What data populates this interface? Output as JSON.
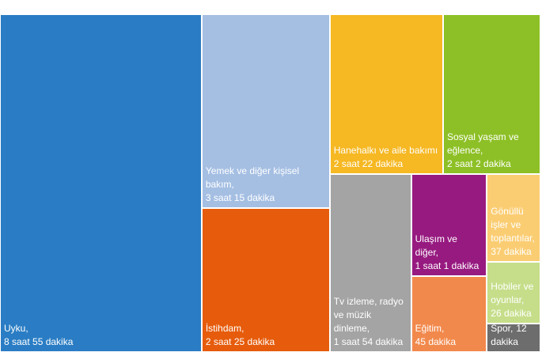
{
  "chart_data": {
    "type": "treemap",
    "categories": [
      "Uyku,",
      "Yemek ve diğer kişisel bakım,",
      "İstihdam,",
      "Hanehalkı ve aile bakımı",
      "Sosyal yaşam ve eğlence,",
      "Tv izleme, radyo ve müzik dinleme,",
      "Ulaşım ve diğer,",
      "Eğitim,",
      "Gönüllü işler ve toplantılar,",
      "Hobiler ve oyunlar,",
      "Spor,"
    ],
    "values": [
      535,
      195,
      145,
      142,
      122,
      114,
      61,
      45,
      37,
      26,
      12
    ],
    "value_labels": [
      "8 saat 55 dakika",
      "3 saat 15 dakika",
      "2 saat 25 dakika",
      "2 saat 22 dakika",
      "2 saat 2 dakika",
      "1 saat 54 dakika",
      "1 saat 1 dakika",
      "45 dakika",
      "37 dakika",
      "26 dakika",
      "12 dakika"
    ],
    "colors": [
      "#2a7dc4",
      "#a5bfe3",
      "#e65c0c",
      "#f6b823",
      "#8dc026",
      "#a4a4a4",
      "#971a80",
      "#f2894c",
      "#fbcd73",
      "#c6de8a",
      "#6d6d6d"
    ]
  }
}
